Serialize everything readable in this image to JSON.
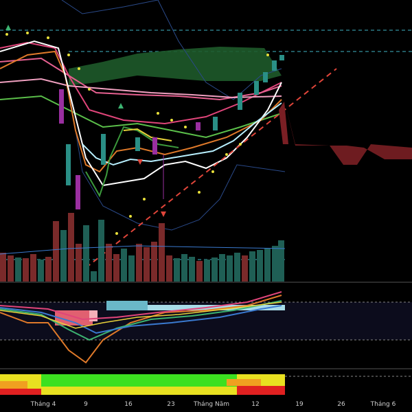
{
  "x_axis": {
    "labels": [
      "Tháng 4",
      "9",
      "16",
      "23",
      "Tháng Năm",
      "12",
      "19",
      "26",
      "Tháng 6"
    ]
  }
}
